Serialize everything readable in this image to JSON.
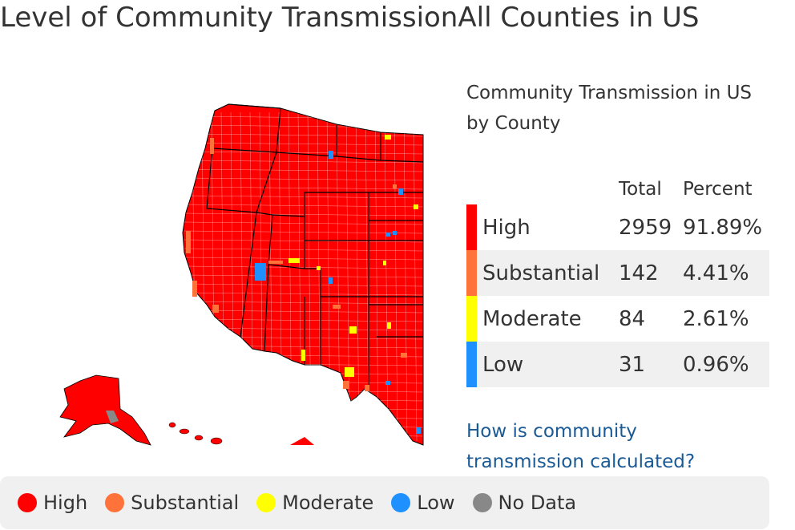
{
  "page": {
    "title": "Level of Community TransmissionAll Counties in US"
  },
  "summary": {
    "title": "Community Transmission in US by County",
    "headers": {
      "total": "Total",
      "percent": "Percent"
    },
    "rows": [
      {
        "level": "High",
        "total": "2959",
        "percent": "91.89%",
        "color": "#ff0000"
      },
      {
        "level": "Substantial",
        "total": "142",
        "percent": "4.41%",
        "color": "#ff7239"
      },
      {
        "level": "Moderate",
        "total": "84",
        "percent": "2.61%",
        "color": "#ffff00"
      },
      {
        "level": "Low",
        "total": "31",
        "percent": "0.96%",
        "color": "#1e90ff"
      }
    ],
    "link_text": "How is community transmission calculated?"
  },
  "legend": {
    "items": [
      {
        "label": "High",
        "color": "#ff0000"
      },
      {
        "label": "Substantial",
        "color": "#ff7239"
      },
      {
        "label": "Moderate",
        "color": "#ffff00"
      },
      {
        "label": "Low",
        "color": "#1e90ff"
      },
      {
        "label": "No Data",
        "color": "#888888"
      }
    ]
  },
  "map": {
    "colors": {
      "high": "#ff0000",
      "substantial": "#ff7239",
      "moderate": "#ffff00",
      "low": "#1e90ff",
      "no_data": "#888888",
      "state_border": "#000000",
      "county_border": "#ffffff"
    }
  }
}
